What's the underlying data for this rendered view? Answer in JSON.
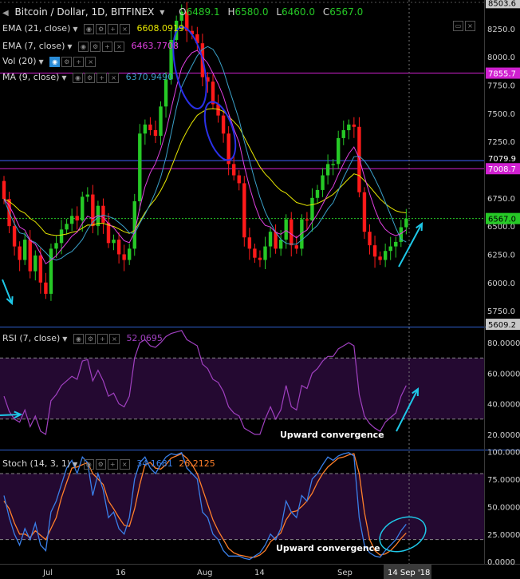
{
  "header": {
    "symbol": "Bitcoin / Dollar, 1D, BITFINEX",
    "o_label": "O",
    "o": "6489.1",
    "h_label": "H",
    "h": "6580.0",
    "l_label": "L",
    "l": "6460.0",
    "c_label": "C",
    "c": "6567.0"
  },
  "indicators": {
    "ema21": {
      "label": "EMA (21, close)",
      "value": "6608.0919",
      "color": "#e6e600"
    },
    "ema7": {
      "label": "EMA (7, close)",
      "value": "6463.7708",
      "color": "#e040e0"
    },
    "vol": {
      "label": "Vol (20)"
    },
    "ma9": {
      "label": "MA (9, close)",
      "value": "6370.9490",
      "color": "#3aa0c8"
    },
    "rsi": {
      "label": "RSI (7, close)",
      "value": "52.0695",
      "color": "#a040c0"
    },
    "stoch": {
      "label": "Stoch (14, 3, 1)",
      "k": "34.1681",
      "d": "26.2125",
      "k_color": "#3a7fe8",
      "d_color": "#ff7f2a"
    }
  },
  "annotations": {
    "rsi_text": "Upward convergence",
    "stoch_text": "Upward convergence"
  },
  "price_labels": {
    "high": "8503.6",
    "r1": "7855.7",
    "r2": "7079.9",
    "r3": "7008.7",
    "current": "6567.0",
    "low": "5609.2"
  },
  "date_label": "14 Sep '18",
  "chart_data": [
    {
      "type": "candlestick",
      "title": "Bitcoin / Dollar, 1D, BITFINEX",
      "ylim": [
        5609.2,
        8503.6
      ],
      "y_ticks": [
        5750,
        6000,
        6250,
        6500,
        6750,
        7000,
        7250,
        7500,
        7750,
        8000,
        8250
      ],
      "y_tick_labels": [
        "5750.0",
        "6000.0",
        "6250.0",
        "6500.0",
        "6750.0",
        "7000.0",
        "7250.0",
        "7500.0",
        "7750.0",
        "8000.0",
        "8250.0"
      ],
      "x_ticks": [
        "Jul",
        "16",
        "Aug",
        "14",
        "Sep"
      ],
      "horizontal_levels": [
        7855.7,
        7079.9,
        7008.7
      ],
      "close": [
        6740,
        6500,
        6320,
        6200,
        6380,
        6100,
        6240,
        6000,
        5900,
        6300,
        6350,
        6470,
        6520,
        6590,
        6550,
        6760,
        6780,
        6500,
        6680,
        6530,
        6350,
        6380,
        6250,
        6200,
        6300,
        6720,
        7320,
        7400,
        7350,
        7300,
        7560,
        7800,
        8150,
        8320,
        8400,
        8230,
        8200,
        8120,
        7820,
        7780,
        7580,
        7480,
        7320,
        7050,
        6950,
        6880,
        6400,
        6300,
        6220,
        6200,
        6320,
        6450,
        6300,
        6380,
        6560,
        6330,
        6300,
        6560,
        6550,
        6750,
        6820,
        6950,
        7050,
        7050,
        7280,
        7350,
        7400,
        7380,
        6800,
        6450,
        6330,
        6230,
        6200,
        6280,
        6320,
        6360,
        6490,
        6567
      ],
      "trend_arrows": [
        "down",
        "up"
      ],
      "ellipse_marks": 2
    },
    {
      "type": "line",
      "title": "RSI (7, close)",
      "ylim": [
        10,
        90
      ],
      "y_ticks": [
        20,
        40,
        60,
        80
      ],
      "y_tick_labels": [
        "20.0000",
        "40.0000",
        "60.0000",
        "80.0000"
      ],
      "levels": [
        70,
        30
      ],
      "series": [
        {
          "name": "RSI (7, close)",
          "values": [
            45,
            35,
            30,
            28,
            36,
            25,
            32,
            22,
            20,
            42,
            46,
            52,
            55,
            58,
            56,
            68,
            69,
            55,
            62,
            55,
            45,
            47,
            40,
            38,
            45,
            70,
            80,
            82,
            78,
            77,
            80,
            84,
            86,
            87,
            88,
            82,
            80,
            78,
            66,
            63,
            56,
            54,
            48,
            38,
            34,
            32,
            24,
            22,
            20,
            20,
            30,
            38,
            30,
            36,
            52,
            38,
            36,
            52,
            50,
            60,
            63,
            68,
            71,
            71,
            76,
            78,
            80,
            78,
            46,
            32,
            27,
            24,
            22,
            28,
            31,
            34,
            45,
            52
          ]
        }
      ]
    },
    {
      "type": "line",
      "title": "Stoch (14, 3, 1)",
      "ylim": [
        -2,
        101
      ],
      "y_ticks": [
        0,
        25,
        50,
        75,
        100
      ],
      "y_tick_labels": [
        "0.0000",
        "25.0000",
        "50.0000",
        "75.0000",
        "100.0000"
      ],
      "levels": [
        80,
        20
      ],
      "series": [
        {
          "name": "%K",
          "values": [
            60,
            40,
            25,
            15,
            30,
            20,
            35,
            15,
            10,
            45,
            55,
            70,
            85,
            92,
            80,
            95,
            90,
            60,
            80,
            65,
            40,
            45,
            30,
            25,
            40,
            75,
            90,
            95,
            85,
            80,
            88,
            95,
            98,
            97,
            99,
            85,
            80,
            75,
            45,
            40,
            25,
            20,
            10,
            5,
            5,
            5,
            3,
            2,
            5,
            8,
            15,
            25,
            20,
            30,
            55,
            45,
            40,
            60,
            55,
            75,
            80,
            88,
            95,
            92,
            96,
            98,
            99,
            96,
            40,
            15,
            8,
            5,
            4,
            10,
            15,
            20,
            28,
            34
          ]
        },
        {
          "name": "%D",
          "values": [
            55,
            48,
            35,
            25,
            25,
            22,
            28,
            24,
            20,
            30,
            40,
            58,
            72,
            85,
            86,
            88,
            90,
            80,
            75,
            70,
            55,
            48,
            40,
            33,
            32,
            48,
            70,
            88,
            90,
            85,
            84,
            88,
            94,
            96,
            98,
            94,
            88,
            80,
            66,
            52,
            38,
            28,
            20,
            12,
            8,
            6,
            5,
            4,
            4,
            6,
            10,
            18,
            22,
            26,
            38,
            45,
            46,
            50,
            55,
            62,
            72,
            80,
            86,
            90,
            94,
            95,
            97,
            98,
            80,
            45,
            20,
            10,
            6,
            7,
            10,
            15,
            21,
            26
          ]
        }
      ]
    }
  ]
}
